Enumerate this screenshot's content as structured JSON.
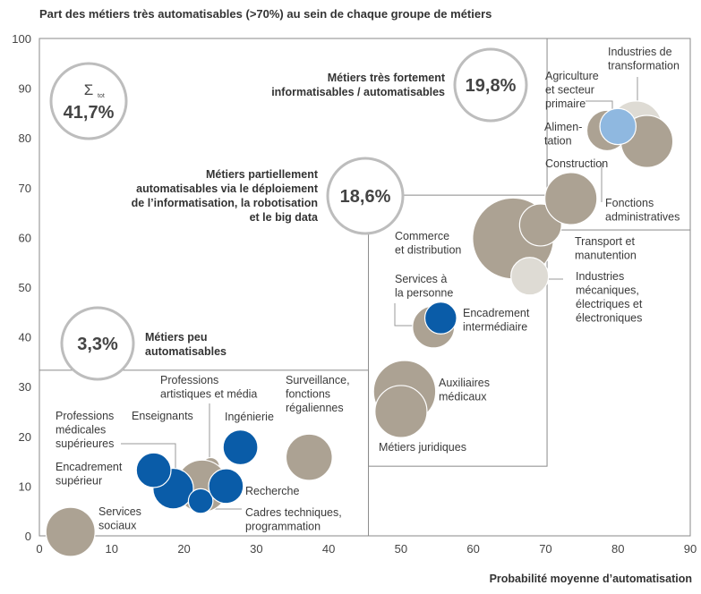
{
  "chart_data": {
    "type": "scatter",
    "title": "Part des métiers très automatisables (>70%) au sein de chaque groupe de métiers",
    "xlabel": "Probabilité moyenne d’automatisation",
    "ylabel": "",
    "xlim": [
      0,
      90
    ],
    "ylim": [
      0,
      100
    ],
    "x_ticks": [
      "0",
      "10",
      "20",
      "30",
      "40",
      "50",
      "60",
      "70",
      "80",
      "90"
    ],
    "y_ticks": [
      "0",
      "10",
      "20",
      "30",
      "40",
      "50",
      "60",
      "70",
      "80",
      "90",
      "100"
    ],
    "colors": {
      "grey": "#aca293",
      "light": "#dedbd4",
      "lightblue": "#8fb8e0",
      "blue": "#0a5ca8",
      "ring": "#bdbdbd",
      "box": "#8a8a8a"
    },
    "zones": [
      {
        "x0": 0,
        "y0": 0,
        "x1": 45.5,
        "y1": 33.3
      },
      {
        "x0": 45.5,
        "y0": 14,
        "x1": 70.2,
        "y1": 68.5
      },
      {
        "x0": 70.2,
        "y0": 61.5,
        "x1": 90,
        "y1": 100
      }
    ],
    "points": [
      {
        "label_lines": [
          "Services",
          "sociaux"
        ],
        "x": 4.3,
        "y": 0.8,
        "r": 3.4,
        "color": "grey"
      },
      {
        "label_lines": [
          "Professions",
          "artistiques et média"
        ],
        "x": 23.7,
        "y": 14,
        "r": 1.2,
        "color": "grey"
      },
      {
        "label_lines": [
          "Enseignants"
        ],
        "x": 22.5,
        "y": 10,
        "r": 3.6,
        "color": "grey"
      },
      {
        "label_lines": [
          "Surveillance,",
          "fonctions",
          "régaliennes"
        ],
        "x": 37.3,
        "y": 15.8,
        "r": 3.2,
        "color": "grey"
      },
      {
        "label_lines": [
          "Professions",
          "médicales",
          "supérieures"
        ],
        "x": 18.5,
        "y": 9.5,
        "r": 2.8,
        "color": "blue"
      },
      {
        "label_lines": [
          "Encadrement",
          "supérieur"
        ],
        "x": 15.8,
        "y": 13.2,
        "r": 2.4,
        "color": "blue"
      },
      {
        "label_lines": [
          "Cadres techniques,",
          "programmation"
        ],
        "x": 22.3,
        "y": 7,
        "r": 1.7,
        "color": "blue"
      },
      {
        "label_lines": [
          "Recherche"
        ],
        "x": 25.8,
        "y": 10,
        "r": 2.4,
        "color": "blue"
      },
      {
        "label_lines": [
          "Ingénierie"
        ],
        "x": 27.8,
        "y": 17.8,
        "r": 2.4,
        "color": "blue"
      },
      {
        "label_lines": [
          "Commerce",
          "et distribution"
        ],
        "x": 65.5,
        "y": 59.8,
        "r": 5.6,
        "color": "grey"
      },
      {
        "label_lines": [
          "Transport et",
          "manutention"
        ],
        "x": 69.3,
        "y": 62.5,
        "r": 2.9,
        "color": "grey"
      },
      {
        "label_lines": [
          "Industries",
          "mécaniques,",
          "électriques et",
          "électroniques"
        ],
        "x": 67.8,
        "y": 52.2,
        "r": 2.6,
        "color": "light"
      },
      {
        "label_lines": [
          "Services à",
          "la personne"
        ],
        "x": 54.5,
        "y": 42,
        "r": 2.9,
        "color": "grey"
      },
      {
        "label_lines": [
          "Encadrement",
          "intermédiaire"
        ],
        "x": 55.5,
        "y": 43.8,
        "r": 2.2,
        "color": "blue"
      },
      {
        "label_lines": [
          "Auxiliaires",
          "médicaux"
        ],
        "x": 50.5,
        "y": 29,
        "r": 4.3,
        "color": "grey"
      },
      {
        "label_lines": [
          "Métiers juridiques"
        ],
        "x": 50,
        "y": 25,
        "r": 3.6,
        "color": "grey"
      },
      {
        "label_lines": [
          "Construction"
        ],
        "x": 73.5,
        "y": 67.8,
        "r": 3.6,
        "color": "grey"
      },
      {
        "label_lines": [
          "Industries de",
          "transformation"
        ],
        "x": 82.5,
        "y": 82.2,
        "r": 3.6,
        "color": "light"
      },
      {
        "label_lines": [
          "Alimen-",
          "tation"
        ],
        "x": 78.5,
        "y": 81.5,
        "r": 2.8,
        "color": "grey"
      },
      {
        "label_lines": [
          "Fonctions",
          "administratives"
        ],
        "x": 84,
        "y": 79.3,
        "r": 3.6,
        "color": "grey"
      },
      {
        "label_lines": [
          "Agriculture",
          "et secteur",
          "primaire"
        ],
        "x": 80,
        "y": 82.3,
        "r": 2.5,
        "color": "lightblue"
      }
    ],
    "annotations": [
      {
        "value": "41,7%",
        "symbol": "Σ",
        "sub": "tot"
      },
      {
        "value": "19,8%",
        "lines": [
          "Métiers très fortement",
          "informatisables / automatisables"
        ]
      },
      {
        "value": "18,6%",
        "lines": [
          "Métiers partiellement",
          "automatisables via le déploiement",
          "de l’informatisation, la robotisation",
          "et le big data"
        ]
      },
      {
        "value": "3,3%",
        "lines": [
          "Métiers peu",
          "automatisables"
        ]
      }
    ]
  }
}
